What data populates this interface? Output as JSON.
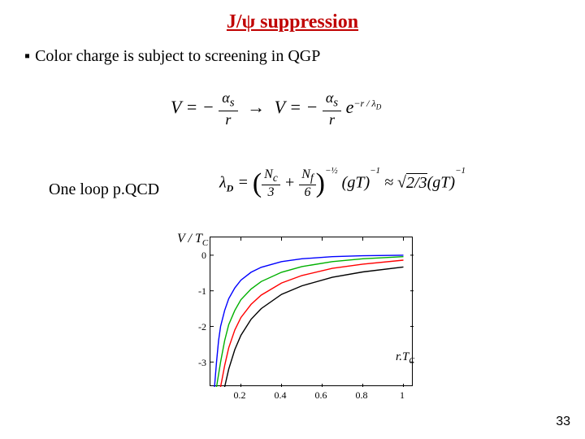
{
  "title": "J/ψ suppression",
  "bullet": "Color charge is subject to screening in QGP",
  "eq1": {
    "lhs_V": "V",
    "minus": "−",
    "alpha": "α",
    "s_sub": "s",
    "r": "r",
    "arrow": "→",
    "e": "e",
    "exp": "−r / λ",
    "exp_D": "D"
  },
  "label2": "One loop p.QCD",
  "eq2": {
    "lambda": "λ",
    "D": "D",
    "Nc": "N",
    "c": "c",
    "three": "3",
    "Nf": "N",
    "f": "f",
    "six": "6",
    "minus_half": "−½",
    "gT": "gT",
    "minus1": "−1",
    "approx": "≈",
    "sqrt_arg": "2/3",
    "plus": "+"
  },
  "chart": {
    "ylabel_V": "V",
    "ylabel_slash": " / ",
    "ylabel_T": "T",
    "ylabel_C": "C",
    "xlabel_r": "r.",
    "xlabel_T": "T",
    "xlabel_C": "C",
    "type": "line",
    "xlim": [
      0.05,
      1.05
    ],
    "ylim": [
      -3.7,
      0.5
    ],
    "yticks": [
      0,
      -1,
      -2,
      -3
    ],
    "ytick_labels": [
      "0",
      "-1",
      "-2",
      "-3"
    ],
    "xticks": [
      0.2,
      0.4,
      0.6,
      0.8,
      1.0
    ],
    "xtick_labels": [
      "0.2",
      "0.4",
      "0.6",
      "0.8",
      "1"
    ],
    "background_color": "#ffffff",
    "border_color": "#000000",
    "curves": [
      {
        "color": "#0000ff",
        "width": 1.4,
        "points": [
          [
            0.07,
            -3.7
          ],
          [
            0.08,
            -3.0
          ],
          [
            0.09,
            -2.4
          ],
          [
            0.1,
            -2.0
          ],
          [
            0.12,
            -1.55
          ],
          [
            0.14,
            -1.22
          ],
          [
            0.17,
            -0.92
          ],
          [
            0.2,
            -0.7
          ],
          [
            0.25,
            -0.48
          ],
          [
            0.3,
            -0.34
          ],
          [
            0.4,
            -0.18
          ],
          [
            0.5,
            -0.1
          ],
          [
            0.65,
            -0.04
          ],
          [
            0.8,
            -0.015
          ],
          [
            1.0,
            0.0
          ]
        ]
      },
      {
        "color": "#00b000",
        "width": 1.4,
        "points": [
          [
            0.08,
            -3.7
          ],
          [
            0.1,
            -3.0
          ],
          [
            0.12,
            -2.4
          ],
          [
            0.14,
            -1.95
          ],
          [
            0.17,
            -1.55
          ],
          [
            0.2,
            -1.25
          ],
          [
            0.25,
            -0.95
          ],
          [
            0.3,
            -0.74
          ],
          [
            0.4,
            -0.48
          ],
          [
            0.5,
            -0.32
          ],
          [
            0.65,
            -0.18
          ],
          [
            0.8,
            -0.1
          ],
          [
            1.0,
            -0.04
          ]
        ]
      },
      {
        "color": "#ff0000",
        "width": 1.4,
        "points": [
          [
            0.1,
            -3.7
          ],
          [
            0.12,
            -3.1
          ],
          [
            0.14,
            -2.6
          ],
          [
            0.17,
            -2.1
          ],
          [
            0.2,
            -1.75
          ],
          [
            0.25,
            -1.38
          ],
          [
            0.3,
            -1.12
          ],
          [
            0.4,
            -0.78
          ],
          [
            0.5,
            -0.57
          ],
          [
            0.65,
            -0.37
          ],
          [
            0.8,
            -0.25
          ],
          [
            1.0,
            -0.14
          ]
        ]
      },
      {
        "color": "#000000",
        "width": 1.4,
        "points": [
          [
            0.12,
            -3.7
          ],
          [
            0.14,
            -3.2
          ],
          [
            0.17,
            -2.65
          ],
          [
            0.2,
            -2.25
          ],
          [
            0.25,
            -1.8
          ],
          [
            0.3,
            -1.5
          ],
          [
            0.4,
            -1.1
          ],
          [
            0.5,
            -0.86
          ],
          [
            0.65,
            -0.62
          ],
          [
            0.8,
            -0.47
          ],
          [
            1.0,
            -0.33
          ]
        ]
      }
    ]
  },
  "page_number": "33"
}
